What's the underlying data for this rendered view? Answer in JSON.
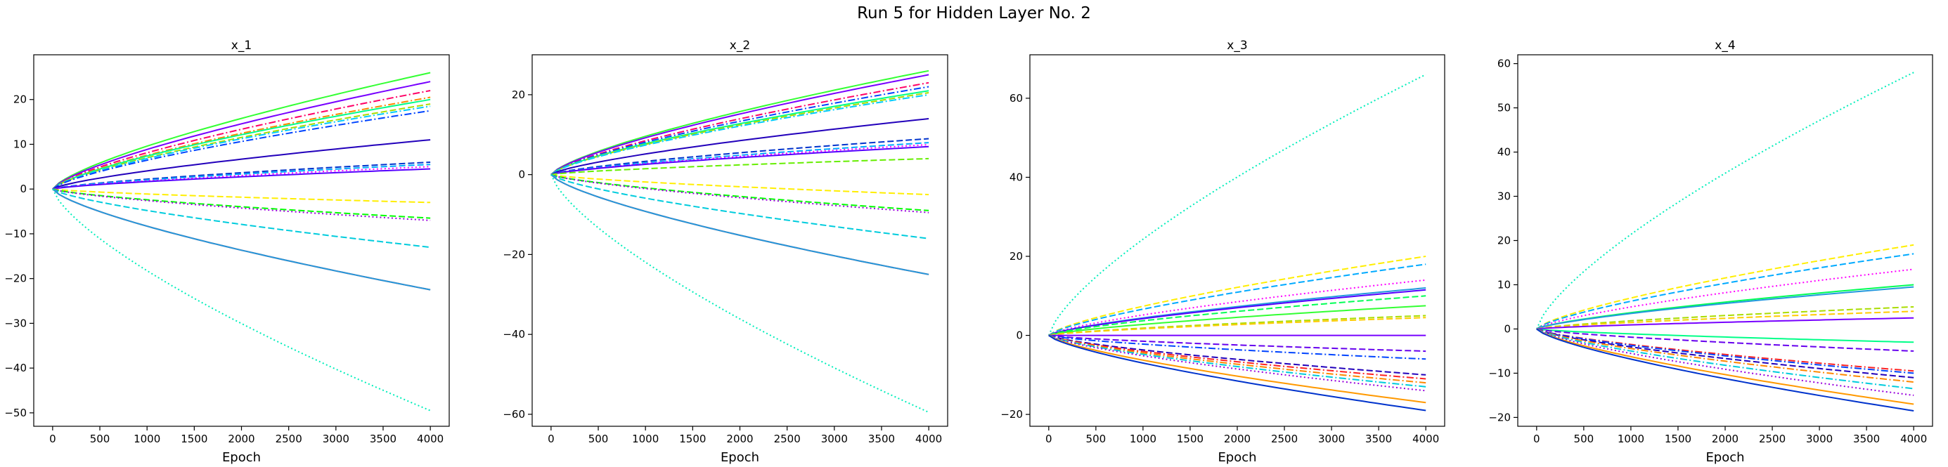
{
  "figure": {
    "title": "Run 5 for Hidden Layer No. 2"
  },
  "chart_data": [
    {
      "type": "line",
      "title": "x_1",
      "xlabel": "Epoch",
      "xlim": [
        -200,
        4200
      ],
      "ylim": [
        -53,
        30
      ],
      "xticks": [
        "0",
        "500",
        "1000",
        "1500",
        "2000",
        "2500",
        "3000",
        "3500",
        "4000"
      ],
      "yticks": [
        -50,
        -40,
        -30,
        -20,
        -10,
        0,
        10,
        20
      ],
      "grid": false,
      "series": [
        {
          "color": "#33ff33",
          "dash": "solid",
          "end": 26
        },
        {
          "color": "#7700ff",
          "dash": "solid",
          "end": 24
        },
        {
          "color": "#ff0066",
          "dash": "dashdot",
          "end": 22
        },
        {
          "color": "#ff8800",
          "dash": "dashdot",
          "end": 20.5
        },
        {
          "color": "#00ff88",
          "dash": "solid",
          "end": 20
        },
        {
          "color": "#aadd00",
          "dash": "dashed",
          "end": 19
        },
        {
          "color": "#00ccff",
          "dash": "dashdot",
          "end": 18.5
        },
        {
          "color": "#0044ff",
          "dash": "dashdot",
          "end": 17.5
        },
        {
          "color": "#2200bb",
          "dash": "solid",
          "end": 11
        },
        {
          "color": "#0033cc",
          "dash": "dashed",
          "end": 6
        },
        {
          "color": "#00aaff",
          "dash": "dashed",
          "end": 5.5
        },
        {
          "color": "#ff00ff",
          "dash": "dotted",
          "end": 5
        },
        {
          "color": "#5500ff",
          "dash": "solid",
          "end": 4.5
        },
        {
          "color": "#ffee00",
          "dash": "dashed",
          "end": -3
        },
        {
          "color": "#00ff00",
          "dash": "dashed",
          "end": -6.5
        },
        {
          "color": "#9900dd",
          "dash": "dotted",
          "end": -7
        },
        {
          "color": "#00ccdd",
          "dash": "dashed",
          "end": -13
        },
        {
          "color": "#ff2222",
          "dash": "solid",
          "end": -22.5
        },
        {
          "color": "#2299dd",
          "dash": "solid",
          "end": -22.5
        },
        {
          "color": "#00eebb",
          "dash": "dotted",
          "end": -49.5
        }
      ]
    },
    {
      "type": "line",
      "title": "x_2",
      "xlabel": "Epoch",
      "xlim": [
        -200,
        4200
      ],
      "ylim": [
        -63,
        30
      ],
      "xticks": [
        "0",
        "500",
        "1000",
        "1500",
        "2000",
        "2500",
        "3000",
        "3500",
        "4000"
      ],
      "yticks": [
        -60,
        -40,
        -20,
        0,
        20
      ],
      "grid": false,
      "series": [
        {
          "color": "#33ff33",
          "dash": "solid",
          "end": 26
        },
        {
          "color": "#7700ff",
          "dash": "solid",
          "end": 25
        },
        {
          "color": "#ff0066",
          "dash": "dashdot",
          "end": 23
        },
        {
          "color": "#0044ff",
          "dash": "dashdot",
          "end": 22
        },
        {
          "color": "#00ff88",
          "dash": "solid",
          "end": 21
        },
        {
          "color": "#aadd00",
          "dash": "dashed",
          "end": 20.5
        },
        {
          "color": "#00ccff",
          "dash": "dashdot",
          "end": 20
        },
        {
          "color": "#2200bb",
          "dash": "solid",
          "end": 14
        },
        {
          "color": "#0033cc",
          "dash": "dashed",
          "end": 9
        },
        {
          "color": "#00aaff",
          "dash": "dashed",
          "end": 8
        },
        {
          "color": "#ff00ff",
          "dash": "dotted",
          "end": 7.5
        },
        {
          "color": "#5500ff",
          "dash": "solid",
          "end": 7
        },
        {
          "color": "#66ee00",
          "dash": "dashed",
          "end": 4
        },
        {
          "color": "#ffee00",
          "dash": "dashed",
          "end": -5
        },
        {
          "color": "#00ff00",
          "dash": "dashed",
          "end": -9
        },
        {
          "color": "#9900dd",
          "dash": "dotted",
          "end": -9.5
        },
        {
          "color": "#00ccdd",
          "dash": "dashed",
          "end": -16
        },
        {
          "color": "#ff2222",
          "dash": "solid",
          "end": -25
        },
        {
          "color": "#2299dd",
          "dash": "solid",
          "end": -25
        },
        {
          "color": "#00eebb",
          "dash": "dotted",
          "end": -59.5
        }
      ]
    },
    {
      "type": "line",
      "title": "x_3",
      "xlabel": "Epoch",
      "xlim": [
        -200,
        4200
      ],
      "ylim": [
        -23,
        71
      ],
      "xticks": [
        "0",
        "500",
        "1000",
        "1500",
        "2000",
        "2500",
        "3000",
        "3500",
        "4000"
      ],
      "yticks": [
        -20,
        0,
        20,
        40,
        60
      ],
      "grid": false,
      "series": [
        {
          "color": "#00eebb",
          "dash": "dotted",
          "end": 66
        },
        {
          "color": "#ffee00",
          "dash": "dashed",
          "end": 20
        },
        {
          "color": "#00aaff",
          "dash": "dashed",
          "end": 18
        },
        {
          "color": "#ff00ff",
          "dash": "dotted",
          "end": 14
        },
        {
          "color": "#2299dd",
          "dash": "solid",
          "end": 12
        },
        {
          "color": "#5500ff",
          "dash": "solid",
          "end": 11.5
        },
        {
          "color": "#00ff55",
          "dash": "dashed",
          "end": 10
        },
        {
          "color": "#33ff33",
          "dash": "solid",
          "end": 7.5
        },
        {
          "color": "#aadd00",
          "dash": "dashed",
          "end": 5
        },
        {
          "color": "#ffcc00",
          "dash": "dashed",
          "end": 4.5
        },
        {
          "color": "#7700ff",
          "dash": "solid",
          "end": 0
        },
        {
          "color": "#6600ee",
          "dash": "dashed",
          "end": -4
        },
        {
          "color": "#0044ff",
          "dash": "dashdot",
          "end": -6
        },
        {
          "color": "#2200bb",
          "dash": "dashed",
          "end": -10
        },
        {
          "color": "#ff2222",
          "dash": "dashdot",
          "end": -11
        },
        {
          "color": "#ff8800",
          "dash": "dashdot",
          "end": -12
        },
        {
          "color": "#00ccdd",
          "dash": "dashdot",
          "end": -13
        },
        {
          "color": "#9900dd",
          "dash": "dotted",
          "end": -14
        },
        {
          "color": "#ff9900",
          "dash": "solid",
          "end": -17
        },
        {
          "color": "#0033cc",
          "dash": "solid",
          "end": -19
        }
      ]
    },
    {
      "type": "line",
      "title": "x_4",
      "xlabel": "Epoch",
      "xlim": [
        -200,
        4200
      ],
      "ylim": [
        -22,
        62
      ],
      "xticks": [
        "0",
        "500",
        "1000",
        "1500",
        "2000",
        "2500",
        "3000",
        "3500",
        "4000"
      ],
      "yticks": [
        -20,
        -10,
        0,
        10,
        20,
        30,
        40,
        50,
        60
      ],
      "grid": false,
      "series": [
        {
          "color": "#00eebb",
          "dash": "dotted",
          "end": 58
        },
        {
          "color": "#ffee00",
          "dash": "dashed",
          "end": 19
        },
        {
          "color": "#00aaff",
          "dash": "dashed",
          "end": 17
        },
        {
          "color": "#ff00ff",
          "dash": "dotted",
          "end": 13.5
        },
        {
          "color": "#00ff55",
          "dash": "solid",
          "end": 10
        },
        {
          "color": "#2299dd",
          "dash": "solid",
          "end": 9.5
        },
        {
          "color": "#aadd00",
          "dash": "dashed",
          "end": 5
        },
        {
          "color": "#ffcc00",
          "dash": "dashed",
          "end": 4
        },
        {
          "color": "#7700ff",
          "dash": "solid",
          "end": 2.5
        },
        {
          "color": "#00ff88",
          "dash": "solid",
          "end": -3
        },
        {
          "color": "#6600ee",
          "dash": "dashed",
          "end": -5
        },
        {
          "color": "#ff2222",
          "dash": "dashdot",
          "end": -9.5
        },
        {
          "color": "#0044ff",
          "dash": "dashdot",
          "end": -10
        },
        {
          "color": "#2200bb",
          "dash": "dashed",
          "end": -11
        },
        {
          "color": "#ff8800",
          "dash": "dashdot",
          "end": -12
        },
        {
          "color": "#00ccdd",
          "dash": "dashdot",
          "end": -13.5
        },
        {
          "color": "#9900dd",
          "dash": "dotted",
          "end": -15
        },
        {
          "color": "#ff9900",
          "dash": "solid",
          "end": -17
        },
        {
          "color": "#0033cc",
          "dash": "solid",
          "end": -18.5
        }
      ]
    }
  ]
}
